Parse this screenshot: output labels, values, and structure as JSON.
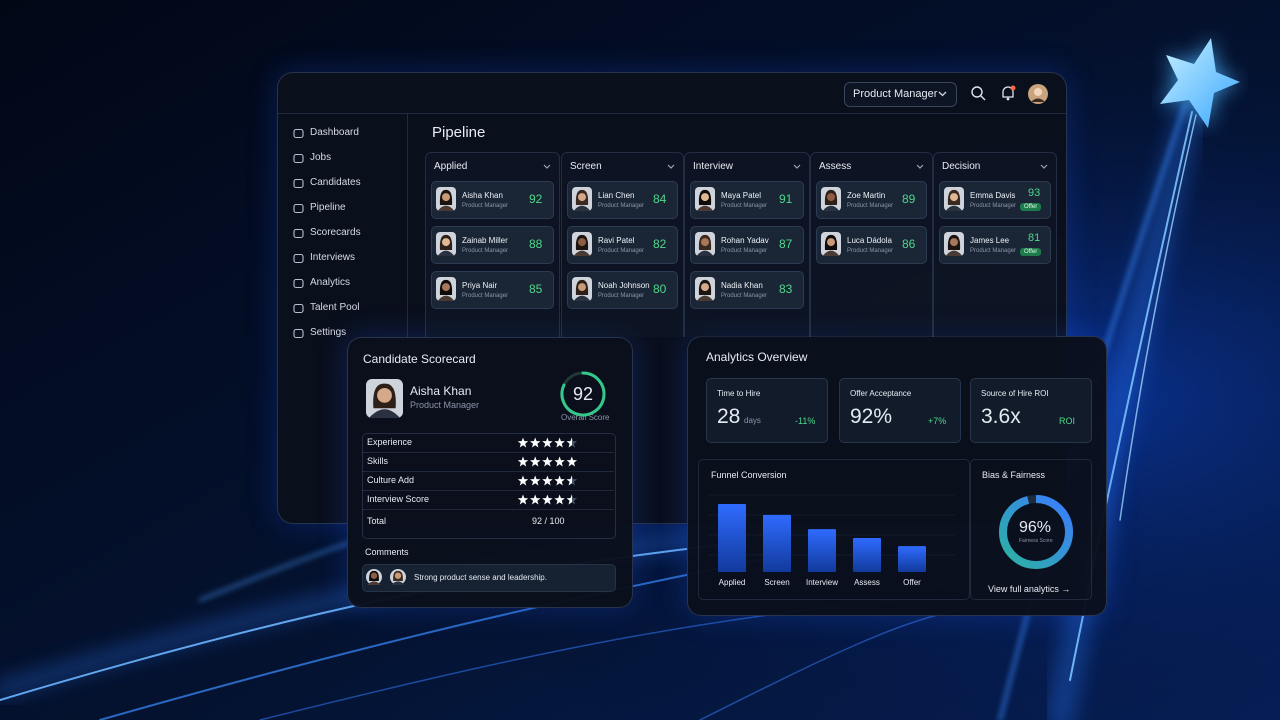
{
  "header": {
    "role_filter": "Product Manager"
  },
  "nav": [
    "Dashboard",
    "Jobs",
    "Candidates",
    "Pipeline",
    "Scorecards",
    "Interviews",
    "Analytics",
    "Talent Pool",
    "Settings"
  ],
  "pipeline": {
    "title": "Pipeline",
    "columns": [
      {
        "name": "Applied",
        "cards": [
          {
            "name": "Aisha Khan",
            "role": "Product Manager",
            "score": 92
          },
          {
            "name": "Zainab Miller",
            "role": "Product Manager",
            "score": 88
          },
          {
            "name": "Priya Nair",
            "role": "Product Manager",
            "score": 85
          }
        ]
      },
      {
        "name": "Screen",
        "cards": [
          {
            "name": "Lian Chen",
            "role": "Product Manager",
            "score": 84
          },
          {
            "name": "Ravi Patel",
            "role": "Product Manager",
            "score": 82
          },
          {
            "name": "Noah Johnson",
            "role": "Product Manager",
            "score": 80
          }
        ]
      },
      {
        "name": "Interview",
        "cards": [
          {
            "name": "Maya Patel",
            "role": "Product Manager",
            "score": 91
          },
          {
            "name": "Rohan Yadav",
            "role": "Product Manager",
            "score": 87
          },
          {
            "name": "Nadia Khan",
            "role": "Product Manager",
            "score": 83
          }
        ]
      },
      {
        "name": "Assess",
        "cards": [
          {
            "name": "Zoe Martin",
            "role": "Product Manager",
            "score": 89
          },
          {
            "name": "Luca Dádola",
            "role": "Product Manager",
            "score": 86
          }
        ]
      },
      {
        "name": "Decision",
        "cards": [
          {
            "name": "Emma Davis",
            "role": "Product Manager",
            "score": 93,
            "badge": "Offer"
          },
          {
            "name": "James Lee",
            "role": "Product Manager",
            "score": 81,
            "badge": "Offer"
          }
        ]
      }
    ]
  },
  "scorecard": {
    "title": "Candidate Scorecard",
    "name": "Aisha Khan",
    "role": "Product Manager",
    "score": 92,
    "score_label": "Overall Score",
    "criteria": [
      {
        "label": "Experience",
        "rating": 4.5
      },
      {
        "label": "Skills",
        "rating": 5
      },
      {
        "label": "Culture Add",
        "rating": 4.5
      },
      {
        "label": "Interview Score",
        "rating": 4.5
      }
    ],
    "total_label": "Total",
    "total": "92 / 100",
    "comments_title": "Comments",
    "comment": "Strong product sense and leadership."
  },
  "analytics": {
    "title": "Analytics Overview",
    "kpis": [
      {
        "label": "Time to Hire",
        "value": "28",
        "unit": "days",
        "change": "-11%"
      },
      {
        "label": "Offer Acceptance",
        "value": "92%",
        "change": "+7%"
      },
      {
        "label": "Source of Hire ROI",
        "value": "3.6x",
        "change": "ROI"
      }
    ],
    "funnel": {
      "type": "bar",
      "title": "Funnel Conversion",
      "categories": [
        "Applied",
        "Screen",
        "Interview",
        "Assess",
        "Offer"
      ],
      "values": [
        100,
        84,
        63,
        50,
        38
      ]
    },
    "fairness": {
      "title": "Bias & Fairness",
      "value": 96,
      "value_label": "96%",
      "label": "Fairness Score"
    },
    "link": "View full analytics →"
  }
}
